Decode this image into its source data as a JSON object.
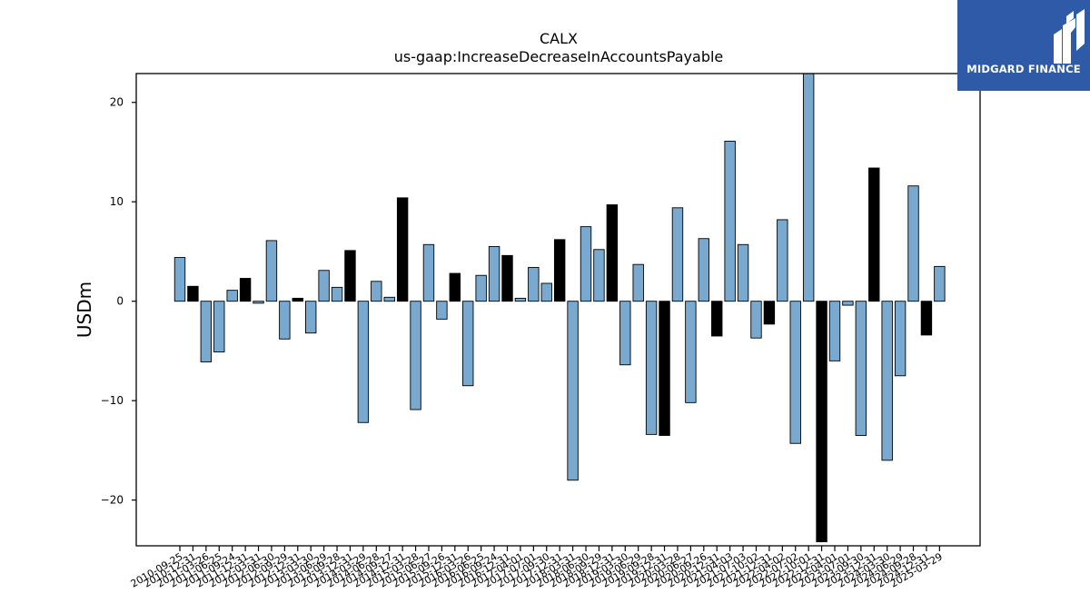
{
  "chart_data": {
    "type": "bar",
    "title": "CALX",
    "subtitle": "us-gaap:IncreaseDecreaseInAccountsPayable",
    "xlabel": "",
    "ylabel": "USDm",
    "ylim": [
      -24.6,
      22.9
    ],
    "yticks": [
      -20,
      -10,
      0,
      10,
      20
    ],
    "grid": false,
    "legend": "none",
    "colors": {
      "quarter": "#7aa9cf",
      "fiscal_year": "#000000",
      "edge": "#000000"
    },
    "categories": [
      "2010-09-25",
      "2010-12-31",
      "2011-03-26",
      "2011-06-25",
      "2011-09-24",
      "2011-12-31",
      "2012-03-31",
      "2012-06-30",
      "2012-09-29",
      "2012-12-31",
      "2013-03-30",
      "2013-06-29",
      "2013-09-28",
      "2013-12-31",
      "2014-03-29",
      "2014-06-28",
      "2014-09-27",
      "2014-12-31",
      "2015-03-28",
      "2015-06-27",
      "2015-09-26",
      "2015-12-31",
      "2016-03-26",
      "2016-06-25",
      "2016-09-24",
      "2016-12-31",
      "2017-04-01",
      "2017-07-01",
      "2017-09-30",
      "2017-12-31",
      "2018-03-31",
      "2018-06-30",
      "2018-09-29",
      "2018-12-31",
      "2019-03-30",
      "2019-06-29",
      "2019-09-28",
      "2019-12-31",
      "2020-03-28",
      "2020-06-27",
      "2020-09-26",
      "2020-12-31",
      "2021-04-03",
      "2021-07-03",
      "2021-10-02",
      "2021-12-31",
      "2022-04-02",
      "2022-07-02",
      "2022-10-01",
      "2022-12-31",
      "2023-04-01",
      "2023-07-01",
      "2023-09-30",
      "2023-12-31",
      "2024-03-30",
      "2024-06-29",
      "2024-09-28",
      "2024-12-31",
      "2025-03-29"
    ],
    "values": [
      4.4,
      1.5,
      -6.1,
      -5.1,
      1.1,
      2.3,
      -0.2,
      6.1,
      -3.8,
      0.3,
      -3.2,
      3.1,
      1.4,
      5.1,
      -12.2,
      2.0,
      0.4,
      10.4,
      -10.9,
      5.7,
      -1.8,
      2.8,
      -8.5,
      2.6,
      5.5,
      4.6,
      0.3,
      3.4,
      1.8,
      6.2,
      -18.0,
      7.5,
      5.2,
      9.7,
      -6.4,
      3.7,
      -13.4,
      -13.5,
      9.4,
      -10.2,
      6.3,
      -3.5,
      16.1,
      5.7,
      -3.7,
      -2.3,
      8.2,
      -14.3,
      23.5,
      -24.2,
      -6.0,
      -0.4,
      -13.5,
      13.4,
      -16.0,
      -7.5,
      11.6,
      -3.4,
      3.5
    ],
    "fiscal_year_flags": [
      false,
      true,
      false,
      false,
      false,
      true,
      false,
      false,
      false,
      true,
      false,
      false,
      false,
      true,
      false,
      false,
      false,
      true,
      false,
      false,
      false,
      true,
      false,
      false,
      false,
      true,
      false,
      false,
      false,
      true,
      false,
      false,
      false,
      true,
      false,
      false,
      false,
      true,
      false,
      false,
      false,
      true,
      false,
      false,
      false,
      true,
      false,
      false,
      false,
      true,
      false,
      false,
      false,
      true,
      false,
      false,
      false,
      true,
      false
    ]
  },
  "logo": {
    "text": "MIDGARD FINANCE",
    "icon": "midgard-logo-icon"
  }
}
